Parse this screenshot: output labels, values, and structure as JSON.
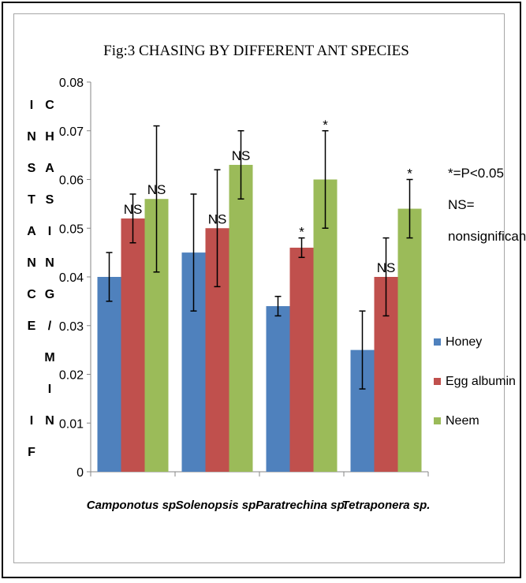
{
  "chart_data": {
    "type": "bar",
    "title": "Fig:3  CHASING BY DIFFERENT ANT SPECIES",
    "ylabel_left_column": [
      "I",
      "N",
      "S",
      "T",
      "A",
      "N",
      "C",
      "E",
      "",
      "I",
      "F"
    ],
    "ylabel_right_column": [
      "C",
      "H",
      "A",
      "S",
      "I",
      "N",
      "G",
      "/",
      "M",
      "I",
      "N"
    ],
    "categories": [
      "Camponotus sp.",
      "Solenopsis sp.",
      "Paratrechina sp.",
      "Tetraponera sp."
    ],
    "ylim": [
      0,
      0.08
    ],
    "yticks": [
      "0",
      "0.01",
      "0.02",
      "0.03",
      "0.04",
      "0.05",
      "0.06",
      "0.07",
      "0.08"
    ],
    "grid": false,
    "legend_position": "right",
    "series": [
      {
        "name": "Honey",
        "color": "#4f81bd",
        "values": [
          0.04,
          0.045,
          0.034,
          0.025
        ],
        "error": [
          0.005,
          0.012,
          0.002,
          0.008
        ],
        "labels": [
          "",
          "",
          "",
          ""
        ]
      },
      {
        "name": "Egg albumin",
        "color": "#c0504d",
        "values": [
          0.052,
          0.05,
          0.046,
          0.04
        ],
        "error": [
          0.005,
          0.012,
          0.002,
          0.008
        ],
        "labels": [
          "NS",
          "NS",
          "*",
          "NS"
        ]
      },
      {
        "name": "Neem",
        "color": "#9bbb59",
        "values": [
          0.056,
          0.063,
          0.06,
          0.054
        ],
        "error": [
          0.015,
          0.007,
          0.01,
          0.006
        ],
        "labels": [
          "NS",
          "NS",
          "*",
          "*"
        ]
      }
    ],
    "notes": [
      "*=P<0.05",
      "NS=",
      "nonsignificant"
    ]
  }
}
